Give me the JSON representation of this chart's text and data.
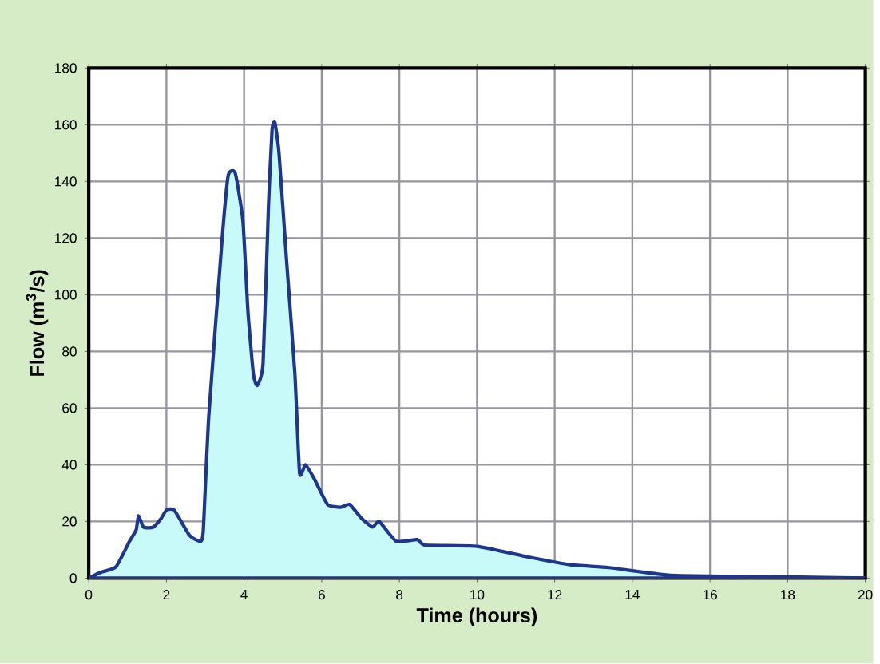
{
  "chart_data": {
    "type": "area",
    "xlabel": "Time (hours)",
    "ylabel": "Flow (m$^{3}$/s)",
    "xlim": [
      0,
      20
    ],
    "ylim": [
      0,
      180
    ],
    "xticks": [
      0,
      2,
      4,
      6,
      8,
      10,
      12,
      14,
      16,
      18,
      20
    ],
    "yticks": [
      0,
      20,
      40,
      60,
      80,
      100,
      120,
      140,
      160,
      180
    ],
    "grid": true,
    "series": [
      {
        "color": "#c8fafa",
        "x": [
          0,
          0.3,
          0.7,
          1.05,
          1.22,
          1.28,
          1.41,
          1.66,
          1.86,
          2.0,
          2.2,
          2.6,
          2.88,
          2.95,
          3.09,
          3.43,
          3.59,
          3.77,
          3.97,
          4.1,
          4.24,
          4.34,
          4.49,
          4.63,
          4.72,
          4.79,
          4.9,
          5.09,
          5.31,
          5.43,
          5.58,
          5.81,
          6.15,
          6.49,
          6.72,
          7.03,
          7.31,
          7.48,
          7.92,
          8.46,
          8.67,
          10.0,
          11.3,
          12.4,
          13.4,
          15.0,
          18.0,
          20
        ],
        "values": [
          0,
          2,
          4,
          13,
          17,
          22,
          18,
          18,
          21,
          24,
          24,
          15,
          13,
          17,
          57,
          119,
          142,
          143,
          126,
          94,
          72,
          68,
          76,
          132,
          158,
          161,
          150,
          113,
          72,
          37,
          40,
          35,
          26,
          25,
          26,
          21,
          18,
          20,
          13,
          13.6,
          11.6,
          11.2,
          7.5,
          4.7,
          3.7,
          1,
          0.4,
          0
        ]
      }
    ]
  }
}
